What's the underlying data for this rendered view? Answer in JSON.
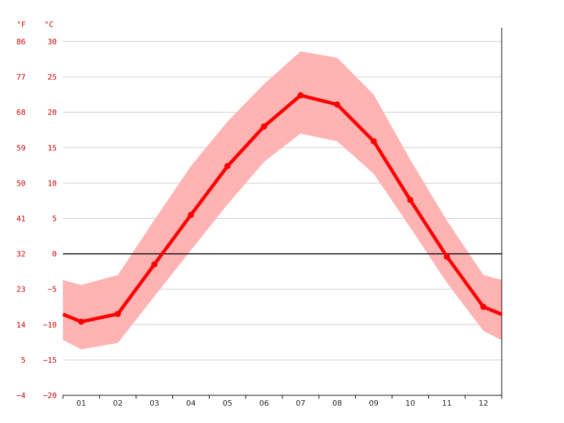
{
  "chart_data": {
    "type": "line",
    "title": "",
    "xlabel": "",
    "ylabel": "",
    "unit_fahrenheit": "°F",
    "unit_celsius": "°C",
    "categories": [
      "01",
      "02",
      "03",
      "04",
      "05",
      "06",
      "07",
      "08",
      "09",
      "10",
      "11",
      "12"
    ],
    "y_ticks_celsius": [
      "30",
      "25",
      "20",
      "15",
      "10",
      "5",
      "0",
      "−5",
      "−10",
      "−15",
      "−20"
    ],
    "y_ticks_fahrenheit": [
      "86",
      "77",
      "68",
      "59",
      "50",
      "41",
      "32",
      "23",
      "14",
      "5",
      "−4"
    ],
    "ylim": [
      -20,
      30
    ],
    "grid": true,
    "series": [
      {
        "role": "mean",
        "values": [
          -9.6,
          -8.5,
          -1.5,
          5.5,
          12.4,
          18.0,
          22.4,
          21.1,
          15.9,
          7.6,
          -0.4,
          -7.5
        ]
      },
      {
        "role": "max",
        "values": [
          -4.4,
          -3.0,
          4.8,
          12.4,
          18.7,
          24.0,
          28.6,
          27.7,
          22.5,
          13.3,
          4.7,
          -3.0
        ]
      },
      {
        "role": "min",
        "values": [
          -13.5,
          -12.6,
          -6.0,
          0.5,
          7.0,
          13.0,
          17.0,
          15.9,
          11.3,
          3.7,
          -4.1,
          -10.9
        ]
      }
    ],
    "colors": {
      "mean_line": "#ff0000",
      "band": "#ffb3b3",
      "grid": "#cccccc",
      "zero_line": "#000000",
      "tick_text": "#cc0000"
    }
  }
}
